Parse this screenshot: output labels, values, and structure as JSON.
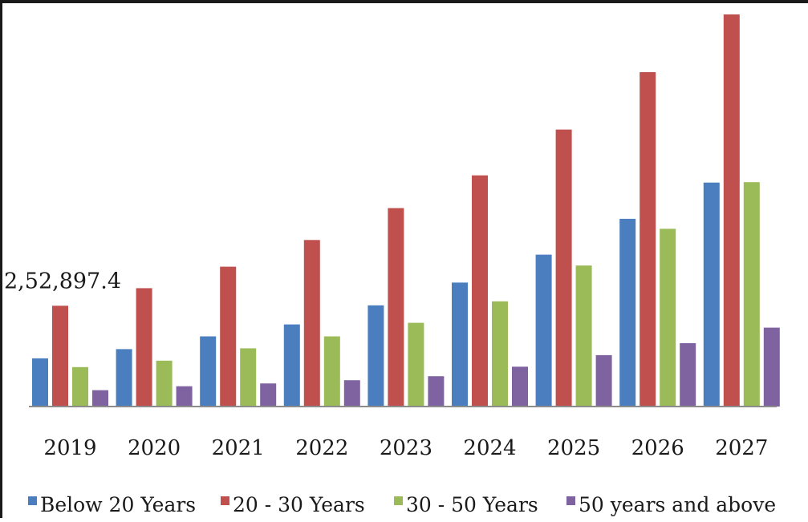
{
  "chart_data": {
    "type": "bar",
    "categories": [
      "2019",
      "2020",
      "2021",
      "2022",
      "2023",
      "2024",
      "2025",
      "2026",
      "2027"
    ],
    "series": [
      {
        "name": "Below 20 Years",
        "color": "#4a7ebf",
        "values": [
          121000,
          144000,
          176000,
          206000,
          254000,
          311000,
          381000,
          471000,
          562000
        ]
      },
      {
        "name": "20 - 30 Years",
        "color": "#c0504d",
        "values": [
          252897.4,
          297000,
          351000,
          418000,
          498000,
          580000,
          695000,
          839000,
          984000
        ]
      },
      {
        "name": "30 - 50 Years",
        "color": "#9bbb59",
        "values": [
          99000,
          115000,
          146000,
          176000,
          210000,
          264000,
          354000,
          446000,
          563000
        ]
      },
      {
        "name": "50 years and above",
        "color": "#7f63a1",
        "values": [
          41000,
          51000,
          58000,
          66000,
          76000,
          100000,
          129000,
          159000,
          198000
        ]
      }
    ],
    "data_labels": [
      {
        "series": 1,
        "index": 0,
        "text": "2,52,897.4"
      }
    ],
    "ylim": [
      0,
      1000000
    ],
    "grid": false,
    "legend_position": "bottom"
  }
}
